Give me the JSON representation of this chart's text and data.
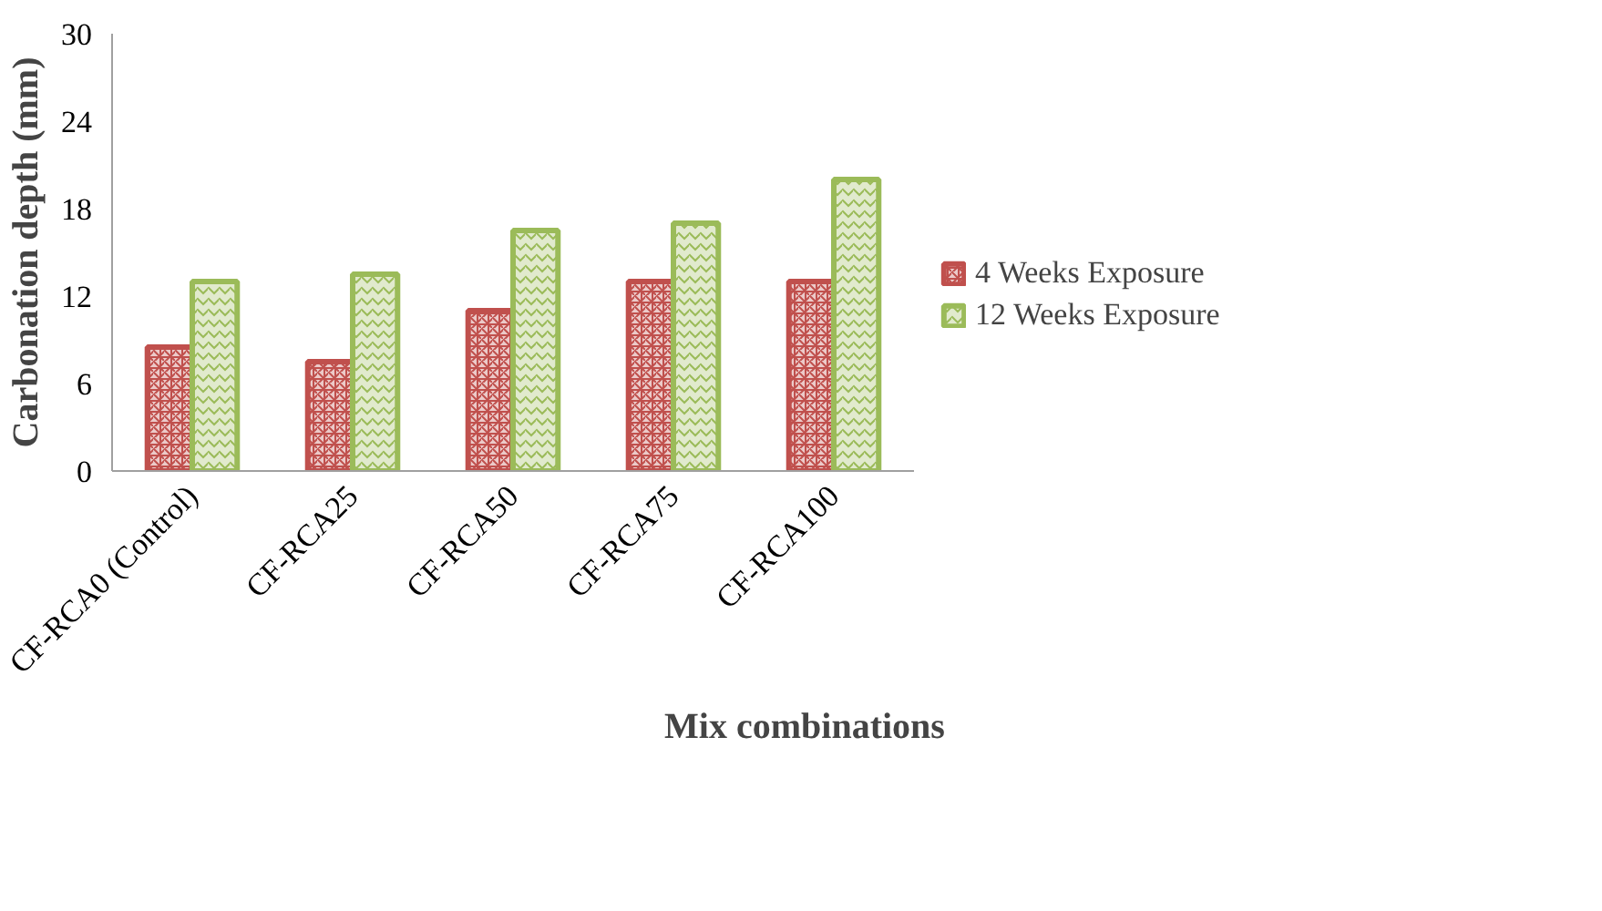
{
  "chart_data": {
    "type": "bar",
    "xlabel": "Mix combinations",
    "ylabel": "Carbonation depth (mm)",
    "categories": [
      "CF-RCA0 (Control)",
      "CF-RCA25",
      "CF-RCA50",
      "CF-RCA75",
      "CF-RCA100"
    ],
    "series": [
      {
        "name": "4 Weeks Exposure",
        "color": "#c0504d",
        "values": [
          8.5,
          7.5,
          11,
          13,
          13
        ]
      },
      {
        "name": "12 Weeks Exposure",
        "color": "#9bbb59",
        "values": [
          13,
          13.5,
          16.5,
          17,
          20
        ]
      }
    ],
    "ylim": [
      0,
      30
    ],
    "yticks": [
      0,
      6,
      12,
      18,
      24,
      30
    ],
    "grid": false,
    "legend": "right"
  }
}
